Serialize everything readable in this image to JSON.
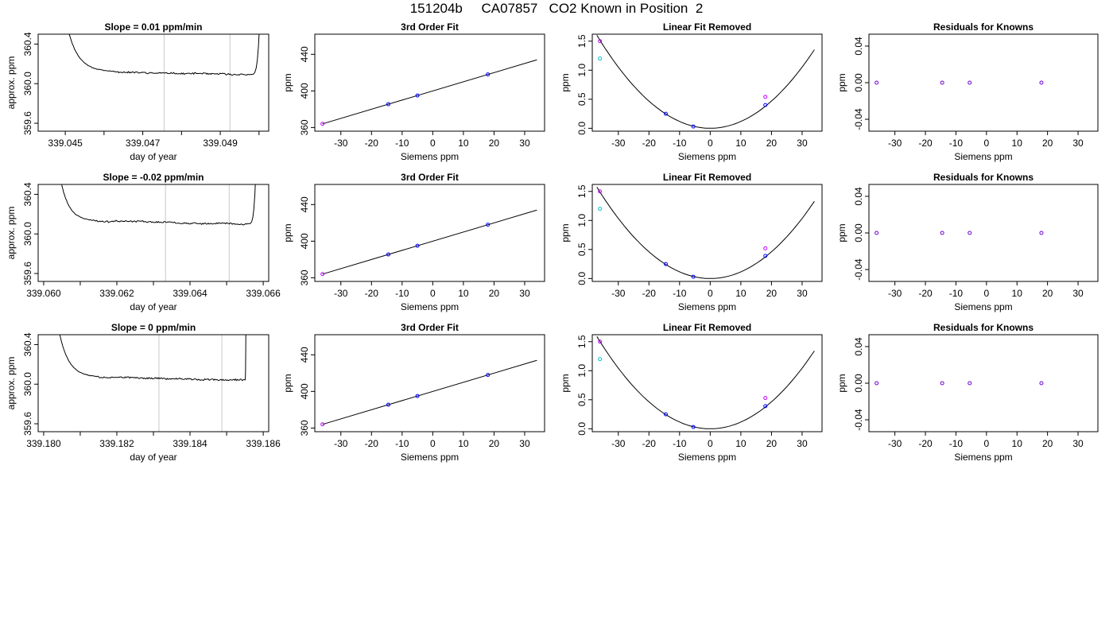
{
  "page": {
    "title": "151204b     CA07857   CO2 Known in Position  2"
  },
  "colors": {
    "line": "#000000",
    "vline": "#c8c8c8",
    "point_blue": "#0000ff",
    "point_cyan": "#00c8d0",
    "point_magenta": "#c000ff",
    "point_purple": "#6a00d0"
  },
  "chart_data": [
    {
      "type": "line",
      "row": 0,
      "col": 0,
      "title": "Slope =  0.01  ppm/min",
      "xlabel": "day of year",
      "ylabel": "approx. ppm",
      "xlim": [
        339.0443,
        339.05025
      ],
      "ylim": [
        359.52,
        360.5
      ],
      "xticks": [
        339.045,
        339.047,
        339.049
      ],
      "xtick_labels": [
        "339.045",
        "339.047",
        "339.049"
      ],
      "xminor": [
        339.046,
        339.048,
        339.05
      ],
      "yticks": [
        359.6,
        360.0,
        360.4
      ],
      "ytick_labels": [
        "359.6",
        "360.0",
        "360.4"
      ],
      "vlines": [
        339.04755,
        339.04925
      ],
      "start": 339.0462,
      "end": 339.0498,
      "level": 360.12,
      "level_end": 360.09,
      "edge_left_x": 339.045,
      "edge_right_x": 339.05005,
      "seed": 11
    },
    {
      "type": "scatter_fit",
      "row": 0,
      "col": 1,
      "mode": "fit",
      "title": "3rd Order Fit",
      "xlabel": "Siemens ppm",
      "ylabel": "ppm",
      "xlim": [
        -38.5,
        36.5
      ],
      "ylim": [
        356,
        462
      ],
      "xticks": [
        -30,
        -20,
        -10,
        0,
        10,
        20,
        30
      ],
      "xtick_labels": [
        "-30",
        "-20",
        "-10",
        "0",
        "10",
        "20",
        "30"
      ],
      "yticks": [
        360,
        400,
        440
      ],
      "ytick_labels": [
        "360",
        "400",
        "440"
      ],
      "line": {
        "slope": 1.0,
        "intercept": 400,
        "x": [
          -36,
          34
        ]
      },
      "points": [
        {
          "x": -36,
          "y": 364,
          "color": "point_magenta"
        },
        {
          "x": -14.5,
          "y": 385.5,
          "color": "point_blue"
        },
        {
          "x": -5,
          "y": 395,
          "color": "point_blue"
        },
        {
          "x": 18,
          "y": 418,
          "color": "point_blue"
        }
      ]
    },
    {
      "type": "scatter_fit",
      "row": 0,
      "col": 2,
      "mode": "quad",
      "title": "Linear Fit Removed",
      "xlabel": "Siemens ppm",
      "ylabel": "ppm",
      "xlim": [
        -38.5,
        36.5
      ],
      "ylim": [
        -0.05,
        1.62
      ],
      "xticks": [
        -30,
        -20,
        -10,
        0,
        10,
        20,
        30
      ],
      "xtick_labels": [
        "-30",
        "-20",
        "-10",
        "0",
        "10",
        "20",
        "30"
      ],
      "yticks": [
        0.0,
        0.5,
        1.0,
        1.5
      ],
      "ytick_labels": [
        "0.0",
        "0.5",
        "1.0",
        "1.5"
      ],
      "curve": {
        "a": 0.00117,
        "x": [
          -37,
          34
        ]
      },
      "points": [
        {
          "x": -36,
          "y": 1.5,
          "color": "point_magenta"
        },
        {
          "x": -36,
          "y": 1.2,
          "color": "point_cyan"
        },
        {
          "x": -14.5,
          "y": 0.25,
          "color": "point_blue"
        },
        {
          "x": -5.5,
          "y": 0.03,
          "color": "point_blue"
        },
        {
          "x": 18,
          "y": 0.4,
          "color": "point_blue"
        },
        {
          "x": 18,
          "y": 0.54,
          "color": "point_magenta"
        }
      ]
    },
    {
      "type": "scatter",
      "row": 0,
      "col": 3,
      "title": "Residuals for Knowns",
      "xlabel": "Siemens ppm",
      "ylabel": "ppm",
      "xlim": [
        -38.5,
        36.5
      ],
      "ylim": [
        -0.053,
        0.053
      ],
      "xticks": [
        -30,
        -20,
        -10,
        0,
        10,
        20,
        30
      ],
      "xtick_labels": [
        "-30",
        "-20",
        "-10",
        "0",
        "10",
        "20",
        "30"
      ],
      "yticks": [
        -0.04,
        0.0,
        0.04
      ],
      "ytick_labels": [
        "-0.04",
        "0.00",
        "0.04"
      ],
      "points": [
        {
          "x": -36,
          "y": 0,
          "color": "point_purple"
        },
        {
          "x": -14.5,
          "y": 0,
          "color": "point_purple"
        },
        {
          "x": -5.5,
          "y": 0,
          "color": "point_purple"
        },
        {
          "x": 18,
          "y": 0,
          "color": "point_purple"
        }
      ]
    },
    {
      "type": "line",
      "row": 1,
      "col": 0,
      "title": "Slope =  -0.02  ppm/min",
      "xlabel": "day of year",
      "ylabel": "approx. ppm",
      "xlim": [
        339.05985,
        339.06615
      ],
      "ylim": [
        359.52,
        360.5
      ],
      "xticks": [
        339.06,
        339.062,
        339.064,
        339.066
      ],
      "xtick_labels": [
        "339.060",
        "339.062",
        "339.064",
        "339.066"
      ],
      "xminor": [
        339.061,
        339.063,
        339.065
      ],
      "yticks": [
        359.6,
        360.0,
        360.4
      ],
      "ytick_labels": [
        "359.6",
        "360.0",
        "360.4"
      ],
      "vlines": [
        339.06333,
        339.06507
      ],
      "start": 339.0614,
      "end": 339.0656,
      "level": 360.13,
      "level_end": 360.1,
      "edge_left_x": 339.0604,
      "edge_right_x": 339.06583,
      "seed": 23
    },
    {
      "type": "scatter_fit",
      "row": 1,
      "col": 1,
      "mode": "fit",
      "title": "3rd Order Fit",
      "xlabel": "Siemens ppm",
      "ylabel": "ppm",
      "xlim": [
        -38.5,
        36.5
      ],
      "ylim": [
        356,
        462
      ],
      "xticks": [
        -30,
        -20,
        -10,
        0,
        10,
        20,
        30
      ],
      "xtick_labels": [
        "-30",
        "-20",
        "-10",
        "0",
        "10",
        "20",
        "30"
      ],
      "yticks": [
        360,
        400,
        440
      ],
      "ytick_labels": [
        "360",
        "400",
        "440"
      ],
      "line": {
        "slope": 1.0,
        "intercept": 400,
        "x": [
          -36,
          34
        ]
      },
      "points": [
        {
          "x": -36,
          "y": 364,
          "color": "point_magenta"
        },
        {
          "x": -14.5,
          "y": 385.5,
          "color": "point_blue"
        },
        {
          "x": -5,
          "y": 395,
          "color": "point_blue"
        },
        {
          "x": 18,
          "y": 418,
          "color": "point_blue"
        }
      ]
    },
    {
      "type": "scatter_fit",
      "row": 1,
      "col": 2,
      "mode": "quad",
      "title": "Linear Fit Removed",
      "xlabel": "Siemens ppm",
      "ylabel": "ppm",
      "xlim": [
        -38.5,
        36.5
      ],
      "ylim": [
        -0.05,
        1.62
      ],
      "xticks": [
        -30,
        -20,
        -10,
        0,
        10,
        20,
        30
      ],
      "xtick_labels": [
        "-30",
        "-20",
        "-10",
        "0",
        "10",
        "20",
        "30"
      ],
      "yticks": [
        0.0,
        0.5,
        1.0,
        1.5
      ],
      "ytick_labels": [
        "0.0",
        "0.5",
        "1.0",
        "1.5"
      ],
      "curve": {
        "a": 0.00115,
        "x": [
          -37,
          34
        ]
      },
      "points": [
        {
          "x": -36,
          "y": 1.5,
          "color": "point_magenta"
        },
        {
          "x": -36,
          "y": 1.2,
          "color": "point_cyan"
        },
        {
          "x": -14.5,
          "y": 0.25,
          "color": "point_blue"
        },
        {
          "x": -5.5,
          "y": 0.03,
          "color": "point_blue"
        },
        {
          "x": 18,
          "y": 0.39,
          "color": "point_blue"
        },
        {
          "x": 18,
          "y": 0.52,
          "color": "point_magenta"
        }
      ]
    },
    {
      "type": "scatter",
      "row": 1,
      "col": 3,
      "title": "Residuals for Knowns",
      "xlabel": "Siemens ppm",
      "ylabel": "ppm",
      "xlim": [
        -38.5,
        36.5
      ],
      "ylim": [
        -0.053,
        0.053
      ],
      "xticks": [
        -30,
        -20,
        -10,
        0,
        10,
        20,
        30
      ],
      "xtick_labels": [
        "-30",
        "-20",
        "-10",
        "0",
        "10",
        "20",
        "30"
      ],
      "yticks": [
        -0.04,
        0.0,
        0.04
      ],
      "ytick_labels": [
        "-0.04",
        "0.00",
        "0.04"
      ],
      "points": [
        {
          "x": -36,
          "y": 0,
          "color": "point_purple"
        },
        {
          "x": -14.5,
          "y": 0,
          "color": "point_purple"
        },
        {
          "x": -5.5,
          "y": 0,
          "color": "point_purple"
        },
        {
          "x": 18,
          "y": 0,
          "color": "point_purple"
        }
      ]
    },
    {
      "type": "line",
      "row": 2,
      "col": 0,
      "title": "Slope =  0  ppm/min",
      "xlabel": "day of year",
      "ylabel": "approx. ppm",
      "xlim": [
        339.17985,
        339.18615
      ],
      "ylim": [
        359.52,
        360.5
      ],
      "xticks": [
        339.18,
        339.182,
        339.184,
        339.186
      ],
      "xtick_labels": [
        "339.180",
        "339.182",
        "339.184",
        "339.186"
      ],
      "xminor": [
        339.181,
        339.183,
        339.185
      ],
      "yticks": [
        359.6,
        360.0,
        360.4
      ],
      "ytick_labels": [
        "359.6",
        "360.0",
        "360.4"
      ],
      "vlines": [
        339.18315,
        339.18487
      ],
      "start": 339.1815,
      "end": 339.1855,
      "level": 360.07,
      "level_end": 360.04,
      "edge_left_x": 339.18038,
      "edge_right_x": 339.18553,
      "seed": 37
    },
    {
      "type": "scatter_fit",
      "row": 2,
      "col": 1,
      "mode": "fit",
      "title": "3rd Order Fit",
      "xlabel": "Siemens ppm",
      "ylabel": "ppm",
      "xlim": [
        -38.5,
        36.5
      ],
      "ylim": [
        356,
        462
      ],
      "xticks": [
        -30,
        -20,
        -10,
        0,
        10,
        20,
        30
      ],
      "xtick_labels": [
        "-30",
        "-20",
        "-10",
        "0",
        "10",
        "20",
        "30"
      ],
      "yticks": [
        360,
        400,
        440
      ],
      "ytick_labels": [
        "360",
        "400",
        "440"
      ],
      "line": {
        "slope": 1.0,
        "intercept": 400,
        "x": [
          -36,
          34
        ]
      },
      "points": [
        {
          "x": -36,
          "y": 364,
          "color": "point_magenta"
        },
        {
          "x": -14.5,
          "y": 385.5,
          "color": "point_blue"
        },
        {
          "x": -5,
          "y": 395,
          "color": "point_blue"
        },
        {
          "x": 18,
          "y": 418,
          "color": "point_blue"
        }
      ]
    },
    {
      "type": "scatter_fit",
      "row": 2,
      "col": 2,
      "mode": "quad",
      "title": "Linear Fit Removed",
      "xlabel": "Siemens ppm",
      "ylabel": "ppm",
      "xlim": [
        -38.5,
        36.5
      ],
      "ylim": [
        -0.05,
        1.62
      ],
      "xticks": [
        -30,
        -20,
        -10,
        0,
        10,
        20,
        30
      ],
      "xtick_labels": [
        "-30",
        "-20",
        "-10",
        "0",
        "10",
        "20",
        "30"
      ],
      "yticks": [
        0.0,
        0.5,
        1.0,
        1.5
      ],
      "ytick_labels": [
        "0.0",
        "0.5",
        "1.0",
        "1.5"
      ],
      "curve": {
        "a": 0.00116,
        "x": [
          -37,
          34
        ]
      },
      "points": [
        {
          "x": -36,
          "y": 1.5,
          "color": "point_magenta"
        },
        {
          "x": -36,
          "y": 1.2,
          "color": "point_cyan"
        },
        {
          "x": -14.5,
          "y": 0.25,
          "color": "point_blue"
        },
        {
          "x": -5.5,
          "y": 0.03,
          "color": "point_blue"
        },
        {
          "x": 18,
          "y": 0.39,
          "color": "point_blue"
        },
        {
          "x": 18,
          "y": 0.53,
          "color": "point_magenta"
        }
      ]
    },
    {
      "type": "scatter",
      "row": 2,
      "col": 3,
      "title": "Residuals for Knowns",
      "xlabel": "Siemens ppm",
      "ylabel": "ppm",
      "xlim": [
        -38.5,
        36.5
      ],
      "ylim": [
        -0.053,
        0.053
      ],
      "xticks": [
        -30,
        -20,
        -10,
        0,
        10,
        20,
        30
      ],
      "xtick_labels": [
        "-30",
        "-20",
        "-10",
        "0",
        "10",
        "20",
        "30"
      ],
      "yticks": [
        -0.04,
        0.0,
        0.04
      ],
      "ytick_labels": [
        "-0.04",
        "0.00",
        "0.04"
      ],
      "points": [
        {
          "x": -36,
          "y": 0,
          "color": "point_purple"
        },
        {
          "x": -14.5,
          "y": 0,
          "color": "point_purple"
        },
        {
          "x": -5.5,
          "y": 0,
          "color": "point_purple"
        },
        {
          "x": 18,
          "y": 0,
          "color": "point_purple"
        }
      ]
    }
  ]
}
